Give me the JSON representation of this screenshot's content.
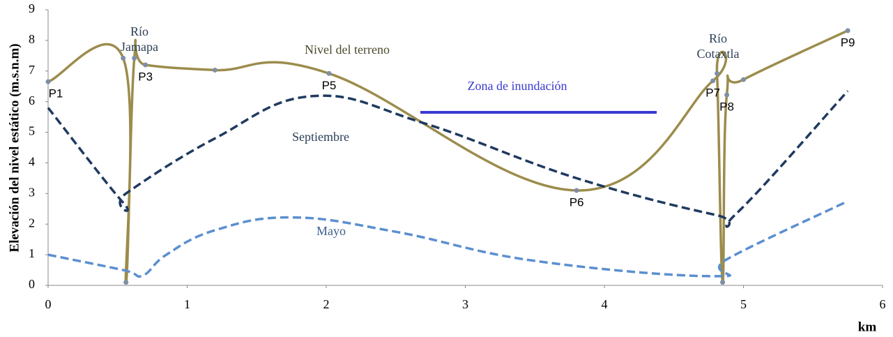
{
  "chart_data": {
    "type": "line",
    "ylabel": "Elevación del nivel estático (m.s.n.m)",
    "xlabel": "km",
    "xlim": [
      0,
      6
    ],
    "xticks": [
      0,
      1,
      2,
      3,
      4,
      5,
      6
    ],
    "ylim": [
      0,
      9
    ],
    "yticks": [
      0,
      1,
      2,
      3,
      4,
      5,
      6,
      7,
      8,
      9
    ],
    "annotations": [
      "Río Jamapa",
      "Río Cotaxtla",
      "Zona de inundación"
    ],
    "series": [
      {
        "name": "Nivel del terreno",
        "color": "#9c8c4c",
        "markers": true,
        "x": [
          0,
          0.54,
          0.56,
          0.62,
          0.7,
          1.2,
          2.02,
          3.8,
          4.78,
          4.81,
          4.85,
          4.88,
          5.0,
          5.75
        ],
        "values": [
          6.65,
          7.42,
          0.1,
          7.42,
          7.2,
          7.03,
          6.92,
          3.1,
          6.68,
          6.92,
          0.1,
          6.22,
          6.72,
          8.32
        ],
        "labels": [
          "P1",
          null,
          null,
          null,
          "P3",
          null,
          "P5",
          "P6",
          "P7",
          null,
          null,
          "P8",
          null,
          "P9"
        ]
      },
      {
        "name": "Septiembre",
        "color": "#1f3a5f",
        "dashed": true,
        "x": [
          0,
          0.54,
          0.56,
          1.2,
          1.9,
          2.7,
          3.8,
          4.8,
          4.95,
          5.75
        ],
        "values": [
          5.8,
          2.7,
          3.0,
          4.8,
          6.18,
          5.3,
          3.5,
          2.3,
          2.35,
          6.35
        ]
      },
      {
        "name": "Mayo",
        "color": "#5b8fd0",
        "dashed": true,
        "x": [
          0,
          0.54,
          0.68,
          0.85,
          1.2,
          1.75,
          2.5,
          3.5,
          4.8,
          4.88,
          5.75
        ],
        "values": [
          1.0,
          0.5,
          0.32,
          1.0,
          1.8,
          2.22,
          1.75,
          0.8,
          0.3,
          0.85,
          2.75
        ]
      }
    ]
  }
}
